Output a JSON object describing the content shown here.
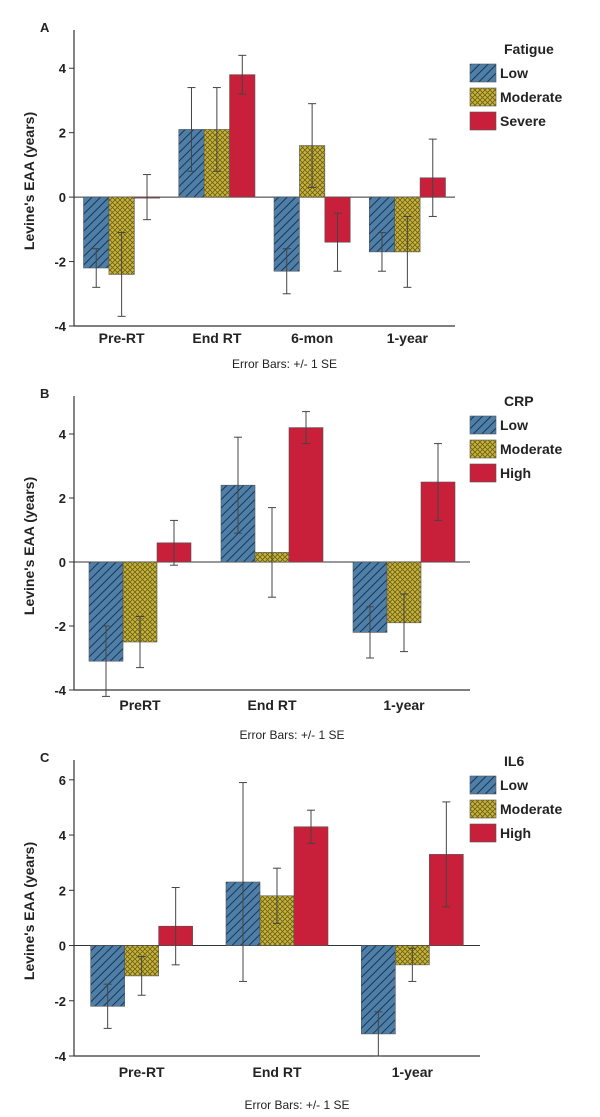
{
  "colors": {
    "low": "#4d7fa8",
    "moderate": "#c8b43a",
    "high": "#c8203a",
    "axis": "#333333"
  },
  "chart_data": [
    {
      "type": "bar",
      "panel_label": "A",
      "ylabel": "Levine's EAA (years)",
      "footnote": "Error Bars: +/- 1 SE",
      "legend_title": "Fatigue",
      "categories": [
        "Pre-RT",
        "End RT",
        "6-mon",
        "1-year"
      ],
      "ylim": [
        -4,
        5
      ],
      "yticks": [
        4,
        2,
        0,
        -2,
        -4
      ],
      "series": [
        {
          "name": "Low",
          "color_key": "low",
          "values": [
            -2.2,
            2.1,
            -2.3,
            -1.7
          ],
          "se": [
            0.6,
            1.3,
            0.7,
            0.6
          ]
        },
        {
          "name": "Moderate",
          "color_key": "moderate",
          "values": [
            -2.4,
            2.1,
            1.6,
            -1.7
          ],
          "se": [
            1.3,
            1.3,
            1.3,
            1.1
          ]
        },
        {
          "name": "Severe",
          "color_key": "high",
          "values": [
            0.0,
            3.8,
            -1.4,
            0.6
          ],
          "se": [
            0.7,
            0.6,
            0.9,
            1.2
          ]
        }
      ]
    },
    {
      "type": "bar",
      "panel_label": "B",
      "ylabel": "Levine's EAA (years)",
      "footnote": "Error Bars: +/- 1 SE",
      "legend_title": "CRP",
      "categories": [
        "PreRT",
        "End RT",
        "1-year"
      ],
      "ylim": [
        -4,
        5
      ],
      "yticks": [
        4,
        2,
        0,
        -2,
        -4
      ],
      "series": [
        {
          "name": "Low",
          "color_key": "low",
          "values": [
            -3.1,
            2.4,
            -2.2
          ],
          "se": [
            1.1,
            1.5,
            0.8
          ]
        },
        {
          "name": "Moderate",
          "color_key": "moderate",
          "values": [
            -2.5,
            0.3,
            -1.9
          ],
          "se": [
            0.8,
            1.4,
            0.9
          ]
        },
        {
          "name": "High",
          "color_key": "high",
          "values": [
            0.6,
            4.2,
            2.5
          ],
          "se": [
            0.7,
            0.5,
            1.2
          ]
        }
      ]
    },
    {
      "type": "bar",
      "panel_label": "C",
      "ylabel": "Levine's EAA (years)",
      "footnote": "Error Bars: +/- 1 SE",
      "legend_title": "IL6",
      "categories": [
        "Pre-RT",
        "End RT",
        "1-year"
      ],
      "ylim": [
        -4,
        6.5
      ],
      "yticks": [
        6,
        4,
        2,
        0,
        -2,
        -4
      ],
      "series": [
        {
          "name": "Low",
          "color_key": "low",
          "values": [
            -2.2,
            2.3,
            -3.2
          ],
          "se": [
            0.8,
            3.6,
            0.8
          ]
        },
        {
          "name": "Moderate",
          "color_key": "moderate",
          "values": [
            -1.1,
            1.8,
            -0.7
          ],
          "se": [
            0.7,
            1.0,
            0.6
          ]
        },
        {
          "name": "High",
          "color_key": "high",
          "values": [
            0.7,
            4.3,
            3.3
          ],
          "se": [
            1.4,
            0.6,
            1.9
          ]
        }
      ]
    }
  ]
}
